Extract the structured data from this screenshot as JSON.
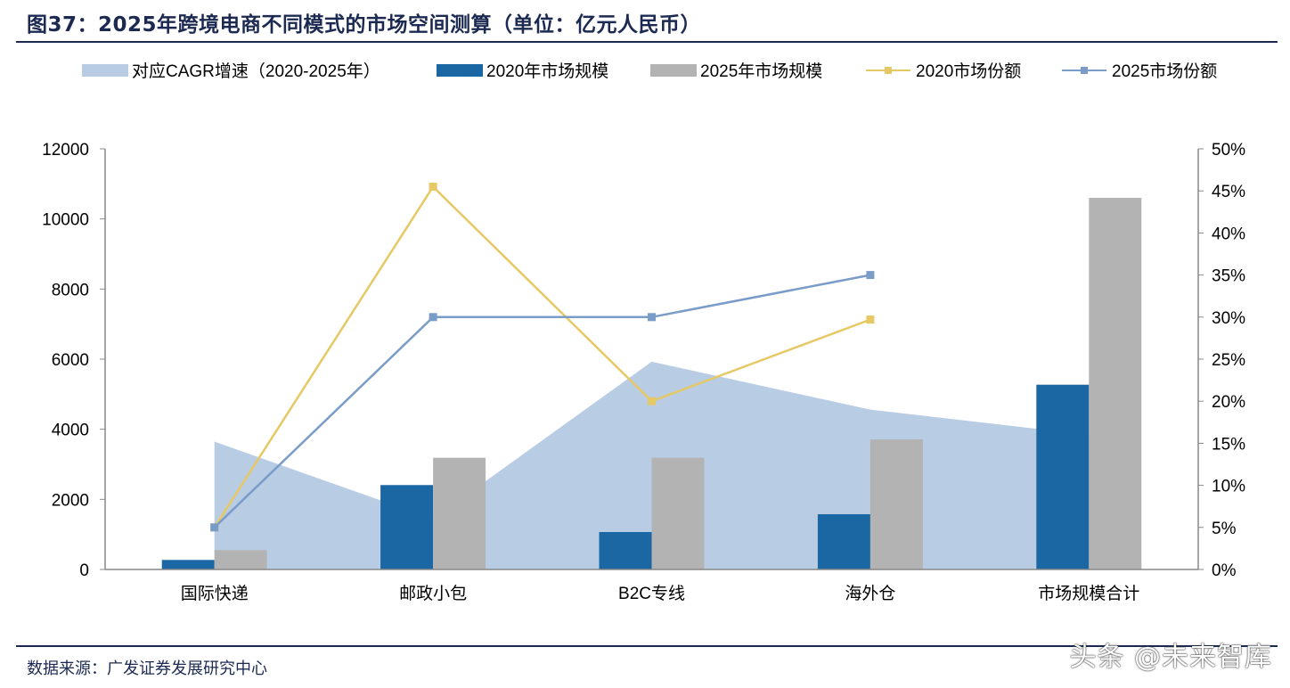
{
  "title": "图37：2025年跨境电商不同模式的市场空间测算（单位：亿元人民币）",
  "source": "数据来源：广发证券发展研究中心",
  "watermark": "头条 @未来智库",
  "chart_data": {
    "type": "bar",
    "categories": [
      "国际快递",
      "邮政小包",
      "B2C专线",
      "海外仓",
      "市场规模合计"
    ],
    "legend_position": "top",
    "grid": false,
    "y_left": {
      "range": [
        0,
        12000
      ],
      "ticks": [
        "0",
        "2000",
        "4000",
        "6000",
        "8000",
        "10000",
        "12000"
      ]
    },
    "y_right": {
      "range": [
        0,
        0.5
      ],
      "ticks": [
        "0%",
        "5%",
        "10%",
        "15%",
        "20%",
        "25%",
        "30%",
        "35%",
        "40%",
        "45%",
        "50%"
      ]
    },
    "series": [
      {
        "name": "对应CAGR增速（2020-2025年）",
        "type": "area",
        "axis": "right",
        "color": "#b8cce4",
        "values": [
          0.152,
          0.06,
          0.247,
          0.19,
          0.16
        ]
      },
      {
        "name": "2020年市场规模",
        "type": "bar",
        "axis": "left",
        "color": "#1a67a3",
        "values": [
          272,
          2408,
          1068,
          1576,
          5271
        ]
      },
      {
        "name": "2025年市场规模",
        "type": "bar",
        "axis": "left",
        "color": "#b3b3b3",
        "values": [
          552,
          3186,
          3186,
          3712,
          10602
        ]
      },
      {
        "name": "2020市场份额",
        "type": "line",
        "axis": "right",
        "color": "#e6c864",
        "values": [
          0.05,
          0.455,
          0.2,
          0.297,
          null
        ]
      },
      {
        "name": "2025市场份额",
        "type": "line",
        "axis": "right",
        "color": "#7a9cc8",
        "values": [
          0.05,
          0.3,
          0.3,
          0.35,
          null
        ]
      }
    ]
  }
}
